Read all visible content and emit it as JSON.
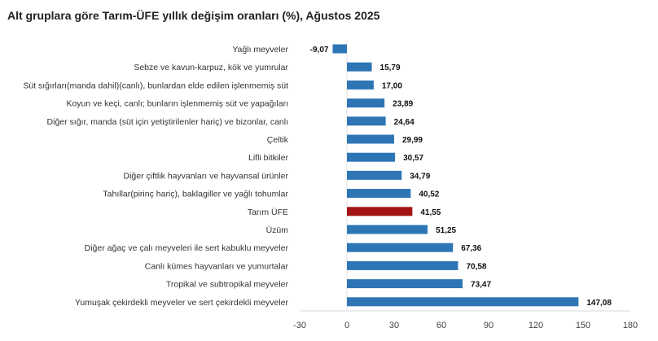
{
  "chart_data": {
    "type": "bar",
    "orientation": "horizontal",
    "title": "Alt gruplara göre Tarım-ÜFE yıllık değişim oranları (%), Ağustos 2025",
    "categories": [
      "Yağlı meyveler",
      "Sebze ve kavun-karpuz, kök ve yumrular",
      "Süt sığırları(manda dahil)(canlı), bunlardan elde edilen işlenmemiş süt",
      "Koyun ve keçi, canlı; bunların işlenmemiş süt ve yapağıları",
      "Diğer sığır, manda (süt için yetiştirilenler hariç) ve bizonlar, canlı",
      "Çeltik",
      "Lifli bitkiler",
      "Diğer çiftlik hayvanları ve hayvansal ürünler",
      "Tahıllar(pirinç hariç), baklagiller ve yağlı tohumlar",
      "Tarım ÜFE",
      "Üzüm",
      "Diğer ağaç ve çalı meyveleri ile sert kabuklu meyveler",
      "Canlı kümes hayvanları ve yumurtalar",
      "Tropikal ve subtropikal meyveler",
      "Yumuşak çekirdekli meyveler ve sert çekirdekli meyveler"
    ],
    "values": [
      -9.07,
      15.79,
      17.0,
      23.89,
      24.64,
      29.99,
      30.57,
      34.79,
      40.52,
      41.55,
      51.25,
      67.36,
      70.58,
      73.47,
      147.08
    ],
    "value_labels": [
      "-9,07",
      "15,79",
      "17,00",
      "23,89",
      "24,64",
      "29,99",
      "30,57",
      "34,79",
      "40,52",
      "41,55",
      "51,25",
      "67,36",
      "70,58",
      "73,47",
      "147,08"
    ],
    "highlight_index": 9,
    "xlim": [
      -30,
      180
    ],
    "xticks": [
      -30,
      0,
      30,
      60,
      90,
      120,
      150,
      180
    ],
    "grid": false,
    "legend": "none",
    "colors": {
      "bar": "#2e75b6",
      "highlight": "#a31515"
    }
  }
}
